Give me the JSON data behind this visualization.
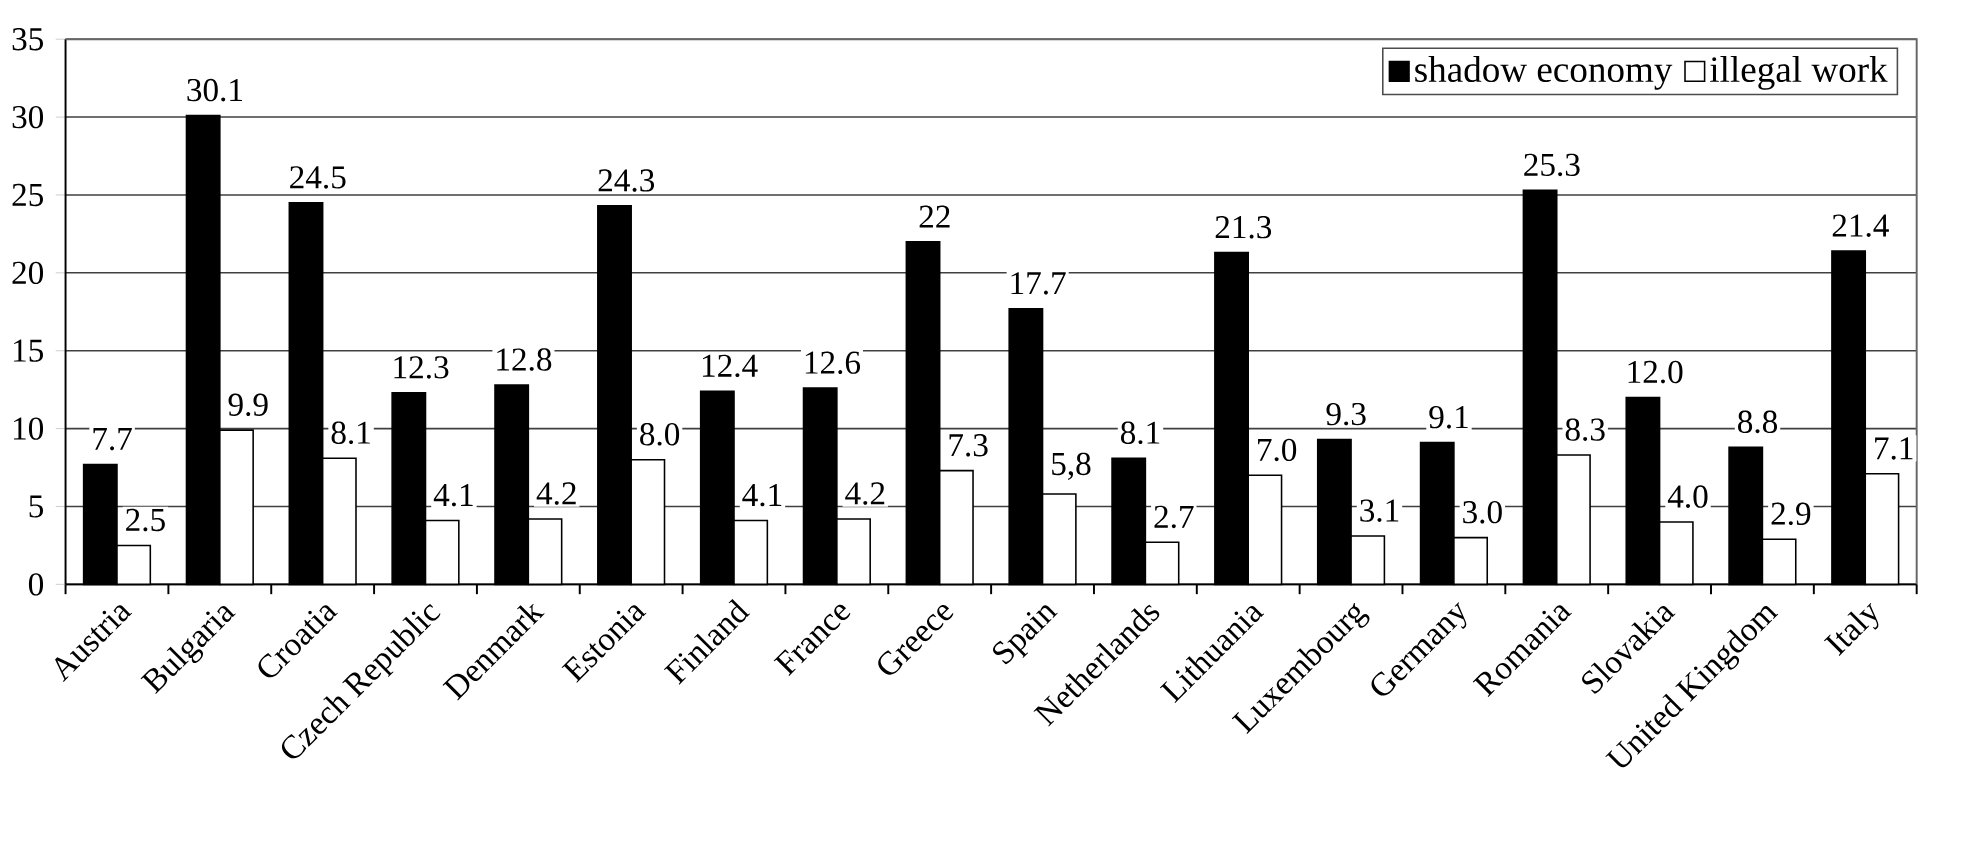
{
  "chart_data": {
    "type": "bar",
    "categories": [
      "Austria",
      "Bulgaria",
      "Croatia",
      "Czech Republic",
      "Denmark",
      "Estonia",
      "Finland",
      "France",
      "Greece",
      "Spain",
      "Netherlands",
      "Lithuania",
      "Luxembourg",
      "Germany",
      "Romania",
      "Slovakia",
      "United Kingdom",
      "Italy"
    ],
    "series": [
      {
        "name": "shadow economy",
        "color": "#000000",
        "values": [
          7.7,
          30.1,
          24.5,
          12.3,
          12.8,
          24.3,
          12.4,
          12.6,
          22,
          17.7,
          8.1,
          21.3,
          9.3,
          9.1,
          25.3,
          12.0,
          8.8,
          21.4
        ],
        "value_labels": [
          "7.7",
          "30.1",
          "24.5",
          "12.3",
          "12.8",
          "24.3",
          "12.4",
          "12.6",
          "22",
          "17.7",
          "8.1",
          "21.3",
          "9.3",
          "9.1",
          "25.3",
          "12.0",
          "8.8",
          "21.4"
        ]
      },
      {
        "name": "illegal work",
        "color": "#ffffff",
        "values": [
          2.5,
          9.9,
          8.1,
          4.1,
          4.2,
          8.0,
          4.1,
          4.2,
          7.3,
          5.8,
          2.7,
          7.0,
          3.1,
          3.0,
          8.3,
          4.0,
          2.9,
          7.1
        ],
        "value_labels": [
          "2.5",
          "9.9",
          "8.1",
          "4.1",
          "4.2",
          "8.0",
          "4.1",
          "4.2",
          "7.3",
          "5,8",
          "2.7",
          "7.0",
          "3.1",
          "3.0",
          "8.3",
          "4.0",
          "2.9",
          "7.1"
        ]
      }
    ],
    "ylim": [
      0,
      35
    ],
    "yticks": [
      0,
      5,
      10,
      15,
      20,
      25,
      30,
      35
    ],
    "grid": "y",
    "legend": "top right"
  }
}
